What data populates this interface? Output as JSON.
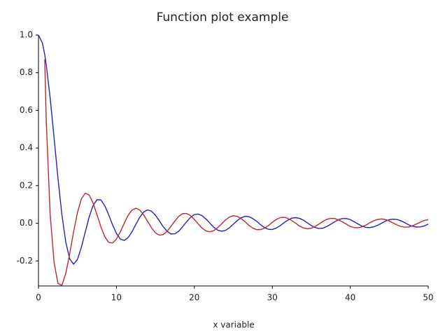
{
  "chart_data": {
    "type": "line",
    "title": "Function plot example",
    "x_label": "x variable",
    "x": [
      0,
      0.5,
      0.8,
      1,
      1.5,
      2,
      2.5,
      3,
      3.5,
      4,
      4.5,
      5,
      5.5,
      6,
      6.5,
      7,
      7.5,
      8,
      8.5,
      9,
      9.5,
      10,
      10.5,
      11,
      11.5,
      12,
      12.5,
      13,
      13.5,
      14,
      14.5,
      15,
      15.5,
      16,
      16.5,
      17,
      17.5,
      18,
      18.5,
      19,
      19.5,
      20,
      20.5,
      21,
      21.5,
      22,
      22.5,
      23,
      23.5,
      24,
      24.5,
      25,
      25.5,
      26,
      26.5,
      27,
      27.5,
      28,
      28.5,
      29,
      29.5,
      30,
      30.5,
      31,
      31.5,
      32,
      32.5,
      33,
      33.5,
      34,
      34.5,
      35,
      35.5,
      36,
      36.5,
      37,
      37.5,
      38,
      38.5,
      39,
      39.5,
      40,
      40.5,
      41,
      41.5,
      42,
      42.5,
      43,
      43.5,
      44,
      44.5,
      45,
      45.5,
      46,
      46.5,
      47,
      47.5,
      48,
      48.5,
      49,
      49.5,
      50
    ],
    "series": [
      {
        "color": "#2121c4",
        "values": [
          1,
          0.958,
          0.897,
          0.841,
          0.665,
          0.455,
          0.239,
          0.047,
          -0.1,
          -0.189,
          -0.217,
          -0.192,
          -0.128,
          -0.047,
          0.033,
          0.094,
          0.125,
          0.124,
          0.094,
          0.046,
          -0.008,
          -0.054,
          -0.084,
          -0.091,
          -0.076,
          -0.045,
          -0.005,
          0.032,
          0.06,
          0.071,
          0.064,
          0.043,
          0.013,
          -0.018,
          -0.043,
          -0.057,
          -0.056,
          -0.042,
          -0.018,
          0.008,
          0.031,
          0.046,
          0.049,
          0.04,
          0.022,
          0,
          -0.022,
          -0.037,
          -0.042,
          -0.038,
          -0.024,
          -0.005,
          0.014,
          0.029,
          0.037,
          0.035,
          0.025,
          0.01,
          -0.008,
          -0.023,
          -0.032,
          -0.033,
          -0.026,
          -0.013,
          0.003,
          0.017,
          0.027,
          0.03,
          0.026,
          0.016,
          0.002,
          -0.012,
          -0.023,
          -0.028,
          -0.026,
          -0.017,
          -0.005,
          0.008,
          0.019,
          0.025,
          0.025,
          0.019,
          0.008,
          -0.004,
          -0.015,
          -0.022,
          -0.023,
          -0.019,
          -0.011,
          0,
          0.011,
          0.019,
          0.022,
          0.02,
          0.013,
          0.003,
          -0.008,
          -0.016,
          -0.02,
          -0.019,
          -0.014,
          -0.005
        ]
      },
      {
        "color": "#c0262c",
        "values": [
          null,
          null,
          0.871,
          0.54,
          0.047,
          -0.208,
          -0.32,
          -0.33,
          -0.267,
          -0.164,
          -0.047,
          0.057,
          0.129,
          0.16,
          0.15,
          0.108,
          0.046,
          -0.018,
          -0.071,
          -0.101,
          -0.105,
          -0.084,
          -0.045,
          0,
          0.042,
          0.07,
          0.08,
          0.07,
          0.044,
          0.01,
          -0.024,
          -0.051,
          -0.063,
          -0.06,
          -0.043,
          -0.016,
          0.012,
          0.037,
          0.051,
          0.052,
          0.041,
          0.02,
          -0.004,
          -0.026,
          -0.041,
          -0.045,
          -0.039,
          -0.023,
          -0.003,
          0.018,
          0.033,
          0.04,
          0.037,
          0.025,
          0.008,
          -0.011,
          -0.026,
          -0.034,
          -0.034,
          -0.026,
          -0.012,
          0.005,
          0.02,
          0.03,
          0.032,
          0.026,
          0.014,
          0,
          -0.015,
          -0.025,
          -0.029,
          -0.026,
          -0.017,
          -0.004,
          0.01,
          0.021,
          0.026,
          0.025,
          0.018,
          0.007,
          -0.005,
          -0.017,
          -0.023,
          -0.024,
          -0.019,
          -0.01,
          0.002,
          0.013,
          0.02,
          0.023,
          0.02,
          0.012,
          0.001,
          -0.009,
          -0.017,
          -0.021,
          -0.02,
          -0.013,
          -0.004,
          0.006,
          0.015,
          0.019
        ]
      }
    ],
    "xlim": [
      0,
      50
    ],
    "xticks": [
      0,
      10,
      20,
      30,
      40,
      50
    ],
    "ylim": [
      -0.333,
      1
    ],
    "yticks": [
      -0.2,
      {
        "value": 0,
        "label": "0.0"
      },
      0.2,
      0.4,
      0.6,
      0.8,
      {
        "value": 1,
        "label": "1.0"
      }
    ],
    "grid": false
  }
}
